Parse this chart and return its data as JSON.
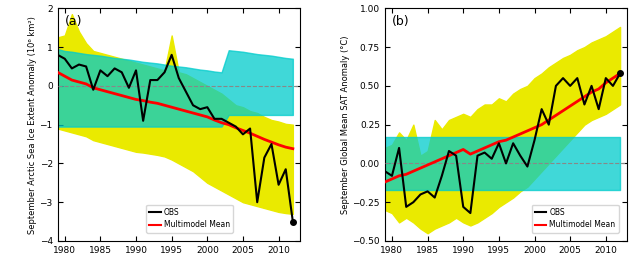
{
  "years": [
    1979,
    1980,
    1981,
    1982,
    1983,
    1984,
    1985,
    1986,
    1987,
    1988,
    1989,
    1990,
    1991,
    1992,
    1993,
    1994,
    1995,
    1996,
    1997,
    1998,
    1999,
    2000,
    2001,
    2002,
    2003,
    2004,
    2005,
    2006,
    2007,
    2008,
    2009,
    2010,
    2011,
    2012
  ],
  "ice_obs": [
    0.8,
    0.7,
    0.45,
    0.55,
    0.5,
    -0.1,
    0.4,
    0.25,
    0.45,
    0.35,
    -0.05,
    0.4,
    -0.9,
    0.15,
    0.15,
    0.35,
    0.8,
    0.2,
    -0.15,
    -0.5,
    -0.6,
    -0.55,
    -0.85,
    -0.85,
    -0.95,
    -1.05,
    -1.25,
    -1.1,
    -3.0,
    -1.85,
    -1.5,
    -2.55,
    -2.15,
    -3.5
  ],
  "ice_model_mean": [
    0.35,
    0.25,
    0.15,
    0.1,
    0.05,
    -0.05,
    -0.1,
    -0.15,
    -0.2,
    -0.25,
    -0.3,
    -0.35,
    -0.38,
    -0.42,
    -0.45,
    -0.5,
    -0.55,
    -0.6,
    -0.65,
    -0.7,
    -0.75,
    -0.8,
    -0.88,
    -0.95,
    -1.0,
    -1.08,
    -1.15,
    -1.22,
    -1.3,
    -1.38,
    -1.45,
    -1.52,
    -1.58,
    -1.62
  ],
  "ice_yellow_upper": [
    1.25,
    1.3,
    1.85,
    1.4,
    1.1,
    0.9,
    0.85,
    0.8,
    0.75,
    0.7,
    0.65,
    0.6,
    0.55,
    0.5,
    0.45,
    0.4,
    1.3,
    0.35,
    0.3,
    0.2,
    0.1,
    0.0,
    -0.1,
    -0.2,
    -0.35,
    -0.5,
    -0.55,
    -0.65,
    -0.7,
    -0.8,
    -0.88,
    -0.92,
    -0.98,
    -1.0
  ],
  "ice_yellow_lower": [
    -1.1,
    -1.15,
    -1.2,
    -1.25,
    -1.3,
    -1.4,
    -1.45,
    -1.5,
    -1.55,
    -1.6,
    -1.65,
    -1.7,
    -1.72,
    -1.75,
    -1.78,
    -1.82,
    -1.9,
    -2.0,
    -2.1,
    -2.2,
    -2.35,
    -2.5,
    -2.6,
    -2.7,
    -2.8,
    -2.9,
    -3.0,
    -3.05,
    -3.1,
    -3.15,
    -3.2,
    -3.25,
    -3.28,
    -3.3
  ],
  "ice_cyan_upper": [
    0.95,
    0.9,
    0.88,
    0.85,
    0.82,
    0.8,
    0.78,
    0.75,
    0.72,
    0.7,
    0.68,
    0.65,
    0.62,
    0.6,
    0.58,
    0.55,
    0.52,
    0.5,
    0.48,
    0.45,
    0.42,
    0.4,
    0.37,
    0.35,
    0.92,
    0.9,
    0.88,
    0.85,
    0.82,
    0.8,
    0.78,
    0.75,
    0.72,
    0.7
  ],
  "ice_cyan_lower": [
    -1.05,
    -1.05,
    -1.05,
    -1.05,
    -1.05,
    -1.05,
    -1.05,
    -1.05,
    -1.05,
    -1.05,
    -1.05,
    -1.05,
    -1.05,
    -1.05,
    -1.05,
    -1.05,
    -1.05,
    -1.05,
    -1.05,
    -1.05,
    -1.05,
    -1.05,
    -1.05,
    -1.05,
    -0.75,
    -0.75,
    -0.75,
    -0.75,
    -0.75,
    -0.75,
    -0.75,
    -0.75,
    -0.75,
    -0.75
  ],
  "temp_obs": [
    -0.05,
    -0.08,
    0.1,
    -0.28,
    -0.25,
    -0.2,
    -0.18,
    -0.22,
    -0.08,
    0.08,
    0.05,
    -0.28,
    -0.32,
    0.05,
    0.07,
    0.03,
    0.13,
    0.0,
    0.13,
    0.05,
    -0.02,
    0.15,
    0.35,
    0.25,
    0.5,
    0.55,
    0.5,
    0.55,
    0.38,
    0.5,
    0.35,
    0.55,
    0.5,
    0.58
  ],
  "temp_model_mean": [
    -0.12,
    -0.1,
    -0.08,
    -0.07,
    -0.05,
    -0.03,
    -0.01,
    0.01,
    0.03,
    0.05,
    0.07,
    0.09,
    0.06,
    0.08,
    0.1,
    0.12,
    0.14,
    0.15,
    0.17,
    0.19,
    0.21,
    0.23,
    0.25,
    0.28,
    0.31,
    0.34,
    0.37,
    0.4,
    0.43,
    0.46,
    0.48,
    0.52,
    0.55,
    0.58
  ],
  "temp_yellow_upper": [
    0.1,
    0.12,
    0.2,
    0.15,
    0.25,
    0.05,
    0.08,
    0.28,
    0.22,
    0.28,
    0.3,
    0.32,
    0.3,
    0.35,
    0.38,
    0.38,
    0.42,
    0.4,
    0.45,
    0.48,
    0.5,
    0.55,
    0.58,
    0.62,
    0.65,
    0.68,
    0.7,
    0.73,
    0.75,
    0.78,
    0.8,
    0.82,
    0.85,
    0.88
  ],
  "temp_yellow_lower": [
    -0.3,
    -0.32,
    -0.38,
    -0.35,
    -0.38,
    -0.42,
    -0.45,
    -0.42,
    -0.4,
    -0.38,
    -0.35,
    -0.38,
    -0.4,
    -0.38,
    -0.35,
    -0.32,
    -0.28,
    -0.25,
    -0.22,
    -0.18,
    -0.15,
    -0.1,
    -0.05,
    0.0,
    0.05,
    0.1,
    0.15,
    0.2,
    0.25,
    0.28,
    0.3,
    0.32,
    0.35,
    0.38
  ],
  "temp_cyan_upper": [
    0.17,
    0.17,
    0.17,
    0.17,
    0.17,
    0.17,
    0.17,
    0.17,
    0.17,
    0.17,
    0.17,
    0.17,
    0.17,
    0.17,
    0.17,
    0.17,
    0.17,
    0.17,
    0.17,
    0.17,
    0.17,
    0.17,
    0.17,
    0.17,
    0.17,
    0.17,
    0.17,
    0.17,
    0.17,
    0.17,
    0.17,
    0.17,
    0.17,
    0.17
  ],
  "temp_cyan_lower": [
    -0.17,
    -0.17,
    -0.17,
    -0.17,
    -0.17,
    -0.17,
    -0.17,
    -0.17,
    -0.17,
    -0.17,
    -0.17,
    -0.17,
    -0.17,
    -0.17,
    -0.17,
    -0.17,
    -0.17,
    -0.17,
    -0.17,
    -0.17,
    -0.17,
    -0.17,
    -0.17,
    -0.17,
    -0.17,
    -0.17,
    -0.17,
    -0.17,
    -0.17,
    -0.17,
    -0.17,
    -0.17,
    -0.17,
    -0.17
  ],
  "yellow_color": "#EAEA00",
  "cyan_color": "#00CCCC",
  "obs_color": "black",
  "model_color": "red",
  "dashed_color": "#888888",
  "panel_a_ylabel": "September Arctic Sea Ice Extent Anomaly (10⁶ km²)",
  "panel_b_ylabel": "September Global Mean SAT Anomaly (°C)",
  "panel_a_ylim": [
    -4,
    2
  ],
  "panel_b_ylim": [
    -0.5,
    1.0
  ],
  "panel_a_yticks": [
    -4,
    -3,
    -2,
    -1,
    0,
    1,
    2
  ],
  "panel_b_yticks": [
    -0.5,
    -0.25,
    0,
    0.25,
    0.5,
    0.75,
    1.0
  ],
  "xlim": [
    1979,
    2013
  ],
  "xticks": [
    1980,
    1985,
    1990,
    1995,
    2000,
    2005,
    2010
  ],
  "label_a": "(a)",
  "label_b": "(b)"
}
